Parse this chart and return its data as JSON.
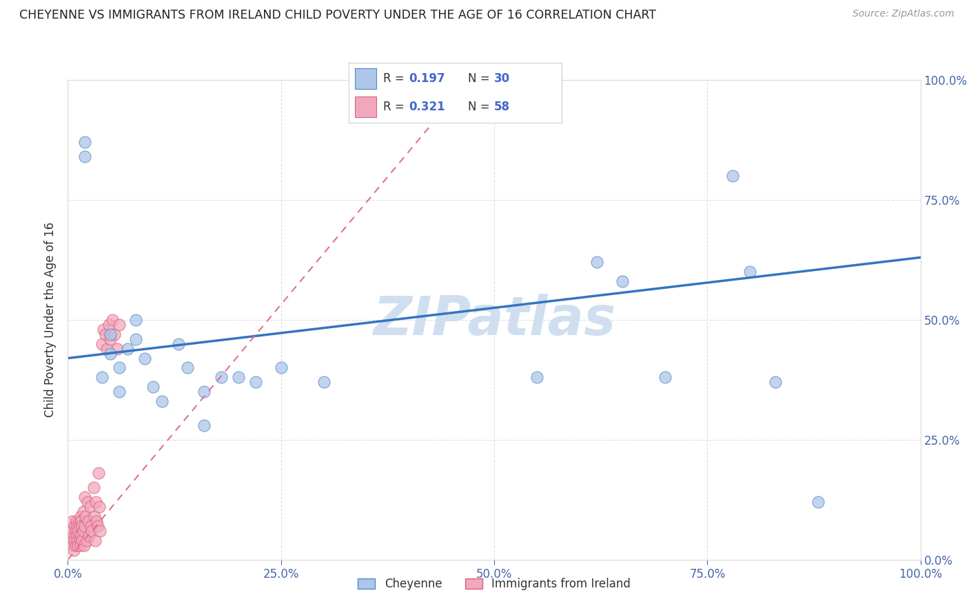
{
  "title": "CHEYENNE VS IMMIGRANTS FROM IRELAND CHILD POVERTY UNDER THE AGE OF 16 CORRELATION CHART",
  "source": "Source: ZipAtlas.com",
  "ylabel": "Child Poverty Under the Age of 16",
  "xlim": [
    0,
    1.0
  ],
  "ylim": [
    0,
    1.0
  ],
  "xtick_values": [
    0.0,
    0.25,
    0.5,
    0.75,
    1.0
  ],
  "xtick_labels": [
    "0.0%",
    "25.0%",
    "50.0%",
    "75.0%",
    "100.0%"
  ],
  "ytick_values": [
    0.0,
    0.25,
    0.5,
    0.75,
    1.0
  ],
  "ytick_labels": [
    "0.0%",
    "25.0%",
    "50.0%",
    "75.0%",
    "100.0%"
  ],
  "right_ytick_labels": [
    "0.0%",
    "25.0%",
    "50.0%",
    "75.0%",
    "100.0%"
  ],
  "cheyenne_color": "#aec6e8",
  "ireland_color": "#f2a8bc",
  "cheyenne_edge": "#5588cc",
  "ireland_edge": "#d96080",
  "cheyenne_trend_color": "#3575c0",
  "ireland_trend_color": "#e07090",
  "watermark": "ZIPatlas",
  "watermark_color": "#d0dff0",
  "cheyenne_scatter_x": [
    0.02,
    0.02,
    0.04,
    0.05,
    0.05,
    0.06,
    0.06,
    0.07,
    0.08,
    0.08,
    0.09,
    0.1,
    0.11,
    0.13,
    0.14,
    0.16,
    0.16,
    0.18,
    0.2,
    0.22,
    0.25,
    0.3,
    0.55,
    0.62,
    0.65,
    0.7,
    0.78,
    0.8,
    0.83,
    0.88
  ],
  "cheyenne_scatter_y": [
    0.84,
    0.87,
    0.38,
    0.47,
    0.43,
    0.4,
    0.35,
    0.44,
    0.5,
    0.46,
    0.42,
    0.36,
    0.33,
    0.45,
    0.4,
    0.28,
    0.35,
    0.38,
    0.38,
    0.37,
    0.4,
    0.37,
    0.38,
    0.62,
    0.58,
    0.38,
    0.8,
    0.6,
    0.37,
    0.12
  ],
  "ireland_scatter_x": [
    0.005,
    0.005,
    0.005,
    0.006,
    0.007,
    0.007,
    0.008,
    0.008,
    0.009,
    0.009,
    0.01,
    0.01,
    0.011,
    0.011,
    0.012,
    0.012,
    0.013,
    0.013,
    0.014,
    0.014,
    0.015,
    0.015,
    0.016,
    0.016,
    0.017,
    0.017,
    0.018,
    0.018,
    0.019,
    0.02,
    0.02,
    0.021,
    0.022,
    0.023,
    0.024,
    0.025,
    0.026,
    0.027,
    0.028,
    0.03,
    0.031,
    0.032,
    0.033,
    0.034,
    0.035,
    0.036,
    0.037,
    0.038,
    0.04,
    0.042,
    0.044,
    0.046,
    0.048,
    0.05,
    0.052,
    0.055,
    0.058,
    0.06
  ],
  "ireland_scatter_y": [
    0.04,
    0.06,
    0.08,
    0.03,
    0.02,
    0.05,
    0.07,
    0.04,
    0.03,
    0.06,
    0.05,
    0.08,
    0.04,
    0.07,
    0.03,
    0.06,
    0.05,
    0.08,
    0.04,
    0.07,
    0.03,
    0.09,
    0.05,
    0.08,
    0.04,
    0.07,
    0.06,
    0.1,
    0.03,
    0.07,
    0.13,
    0.09,
    0.04,
    0.12,
    0.08,
    0.05,
    0.11,
    0.07,
    0.06,
    0.15,
    0.09,
    0.04,
    0.12,
    0.08,
    0.07,
    0.18,
    0.11,
    0.06,
    0.45,
    0.48,
    0.47,
    0.44,
    0.49,
    0.46,
    0.5,
    0.47,
    0.44,
    0.49
  ],
  "cheyenne_trend_x0": 0.0,
  "cheyenne_trend_y0": 0.42,
  "cheyenne_trend_x1": 1.0,
  "cheyenne_trend_y1": 0.63,
  "ireland_trend_x0": 0.0,
  "ireland_trend_y0": 0.0,
  "ireland_trend_x1": 0.47,
  "ireland_trend_y1": 1.0,
  "background_color": "#ffffff",
  "grid_color": "#dddddd"
}
